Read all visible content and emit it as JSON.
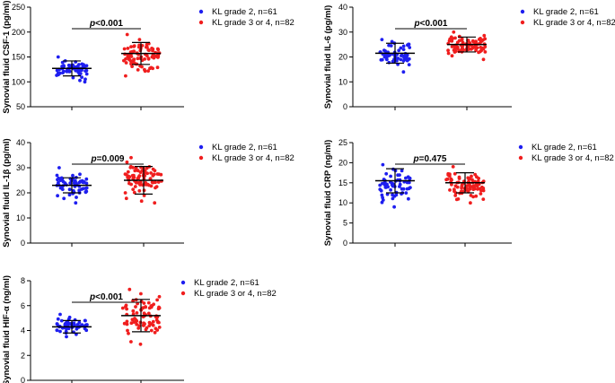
{
  "figure": {
    "type": "scatter-dot-plot-panels"
  },
  "colors": {
    "group1": "#1e1ef0",
    "group2": "#f01e1e",
    "line": "#000000"
  },
  "legend": [
    {
      "label": "KL grade 2, n=61",
      "n": 61,
      "color": "#1e1ef0"
    },
    {
      "label": "KL grade 3 or 4, n=82",
      "n": 82,
      "color": "#f01e1e"
    }
  ],
  "chart_data": [
    {
      "type": "scatter",
      "ylabel": "Synovial fluid CSF-1 (pg/ml)",
      "ylim": [
        50,
        250
      ],
      "yticks": [
        50,
        100,
        150,
        200,
        250
      ],
      "p_italic": "p",
      "p_rest": "<0.001",
      "series": [
        {
          "name": "KL grade 2, n=61",
          "n": 61,
          "mean": 127,
          "sd": 15,
          "min": 100,
          "max": 150
        },
        {
          "name": "KL grade 3 or 4, n=82",
          "n": 82,
          "mean": 157,
          "sd": 22,
          "min": 112,
          "max": 195
        }
      ]
    },
    {
      "type": "scatter",
      "ylabel": "Synovial fluid IL-6 (pg/ml)",
      "ylim": [
        0,
        40
      ],
      "yticks": [
        0,
        10,
        20,
        30,
        40
      ],
      "p_italic": "p",
      "p_rest": "<0.001",
      "series": [
        {
          "name": "KL grade 2, n=61",
          "n": 61,
          "mean": 21.5,
          "sd": 4,
          "min": 14,
          "max": 27
        },
        {
          "name": "KL grade 3 or 4, n=82",
          "n": 82,
          "mean": 25,
          "sd": 3,
          "min": 19,
          "max": 30
        }
      ]
    },
    {
      "type": "scatter",
      "ylabel": "Synovial fluid IL-1β (pg/ml)",
      "ylim": [
        0,
        40
      ],
      "yticks": [
        0,
        10,
        20,
        30,
        40
      ],
      "p_italic": "p",
      "p_rest": "=0.009",
      "series": [
        {
          "name": "KL grade 2, n=61",
          "n": 61,
          "mean": 23,
          "sd": 3,
          "min": 16,
          "max": 30
        },
        {
          "name": "KL grade 3 or 4, n=82",
          "n": 82,
          "mean": 25,
          "sd": 5.5,
          "min": 16,
          "max": 34
        }
      ]
    },
    {
      "type": "scatter",
      "ylabel": "Synovial fluid CRP (ng/ml)",
      "ylim": [
        0,
        25
      ],
      "yticks": [
        0,
        5,
        10,
        15,
        20,
        25
      ],
      "p_italic": "p",
      "p_rest": "=0.475",
      "series": [
        {
          "name": "KL grade 2, n=61",
          "n": 61,
          "mean": 15.5,
          "sd": 3,
          "min": 9,
          "max": 19.5
        },
        {
          "name": "KL grade 3 or 4, n=82",
          "n": 82,
          "mean": 15,
          "sd": 2.5,
          "min": 10,
          "max": 19
        }
      ]
    },
    {
      "type": "scatter",
      "ylabel": "Synovial fluid HIF-α (ng/ml)",
      "ylim": [
        0,
        8
      ],
      "yticks": [
        0,
        2,
        4,
        6,
        8
      ],
      "p_italic": "p",
      "p_rest": "<0.001",
      "series": [
        {
          "name": "KL grade 2, n=61",
          "n": 61,
          "mean": 4.3,
          "sd": 0.5,
          "min": 3.5,
          "max": 5.3
        },
        {
          "name": "KL grade 3 or 4, n=82",
          "n": 82,
          "mean": 5.2,
          "sd": 1.3,
          "min": 2.9,
          "max": 7.3
        }
      ]
    }
  ]
}
